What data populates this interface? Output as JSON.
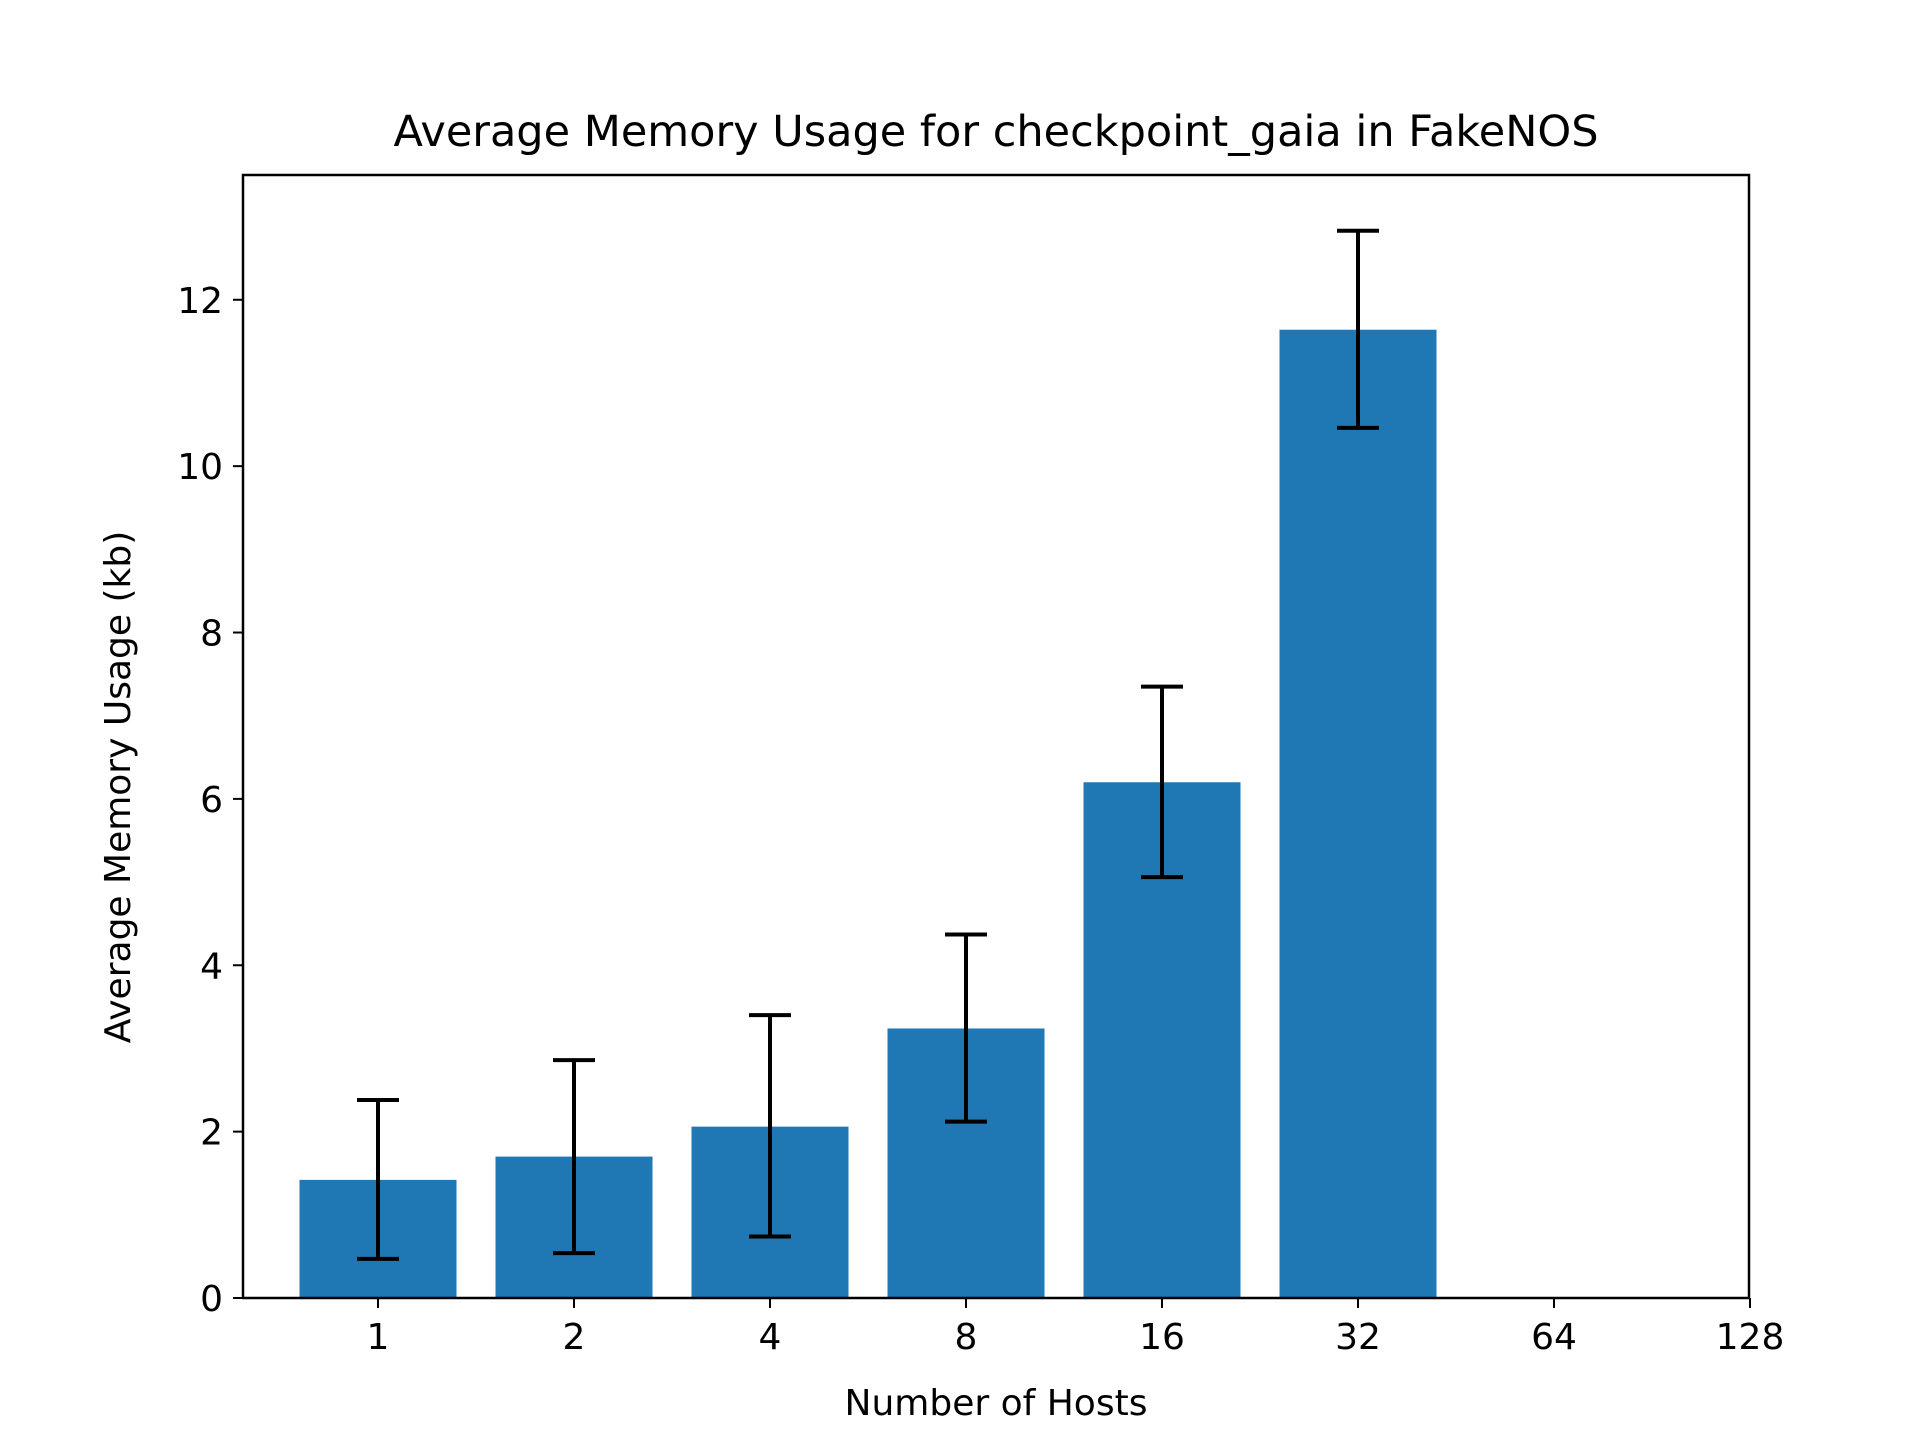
{
  "chart_data": {
    "type": "bar",
    "title": "Average Memory Usage for checkpoint_gaia in FakeNOS",
    "xlabel": "Number of Hosts",
    "ylabel": "Average Memory Usage (kb)",
    "categories": [
      "1",
      "2",
      "4",
      "8",
      "16",
      "32",
      "64",
      "128"
    ],
    "bars": [
      {
        "category": "1",
        "value": 1.42,
        "err_low": 0.47,
        "err_high": 2.38
      },
      {
        "category": "2",
        "value": 1.7,
        "err_low": 0.54,
        "err_high": 2.86
      },
      {
        "category": "4",
        "value": 2.06,
        "err_low": 0.74,
        "err_high": 3.4
      },
      {
        "category": "8",
        "value": 3.24,
        "err_low": 2.12,
        "err_high": 4.37
      },
      {
        "category": "16",
        "value": 6.2,
        "err_low": 5.06,
        "err_high": 7.35
      },
      {
        "category": "32",
        "value": 11.64,
        "err_low": 10.46,
        "err_high": 12.83
      }
    ],
    "ylim": [
      0,
      13.5
    ],
    "yticks": [
      0,
      2,
      4,
      6,
      8,
      10,
      12
    ],
    "grid": false,
    "legend": "none",
    "bar_color": "#1f77b4",
    "error_bar_color": "#000000"
  }
}
